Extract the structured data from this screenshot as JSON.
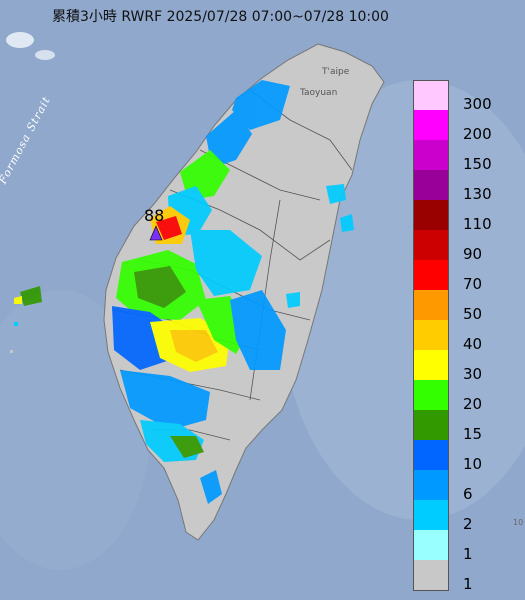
{
  "title": "累積3小時 RWRF 2025/07/28 07:00~07/28 10:00",
  "map_labels": {
    "strait": "Formosa Strait",
    "taipei": "T'aipe",
    "taoyuan": "Taoyuan"
  },
  "max_marker": {
    "value": "88",
    "color": "#7b2ff7"
  },
  "legend": [
    {
      "label": "300",
      "color": "#ffc8ff"
    },
    {
      "label": "200",
      "color": "#ff00ff"
    },
    {
      "label": "150",
      "color": "#cc00cc"
    },
    {
      "label": "130",
      "color": "#990099"
    },
    {
      "label": "110",
      "color": "#990000"
    },
    {
      "label": "90",
      "color": "#cc0000"
    },
    {
      "label": "70",
      "color": "#ff0000"
    },
    {
      "label": "50",
      "color": "#ff9900"
    },
    {
      "label": "40",
      "color": "#ffcc00"
    },
    {
      "label": "30",
      "color": "#ffff00"
    },
    {
      "label": "20",
      "color": "#33ff00"
    },
    {
      "label": "15",
      "color": "#339900"
    },
    {
      "label": "10",
      "color": "#0066ff"
    },
    {
      "label": "6",
      "color": "#0099ff"
    },
    {
      "label": "2",
      "color": "#00ccff"
    },
    {
      "label": "1",
      "color": "#99ffff"
    },
    {
      "label": "1",
      "color": "#c8c8c8"
    }
  ],
  "edge_text": "10"
}
